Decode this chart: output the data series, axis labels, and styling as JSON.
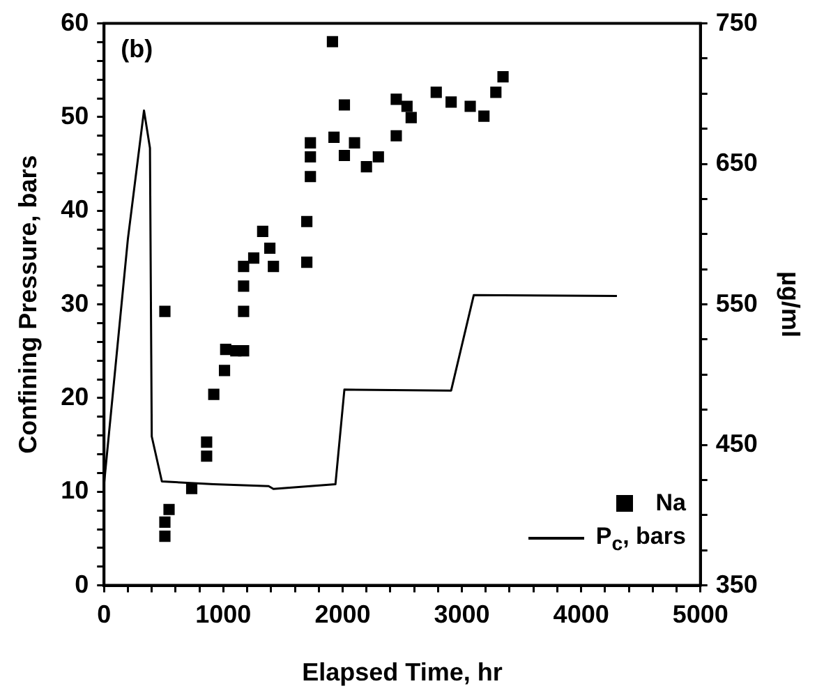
{
  "chart_data": {
    "type": "scatter",
    "xlabel": "Elapsed Time, hr",
    "ylabel": "Confining Pressure, bars",
    "y2label": "µg/ml",
    "annotations": [
      "(b)"
    ],
    "xlim": [
      0,
      5000
    ],
    "xticks": [
      0,
      {
        "value": 200,
        "label": null
      },
      {
        "value": 400,
        "label": null
      },
      {
        "value": 600,
        "label": null
      },
      {
        "value": 800,
        "label": null
      },
      1000,
      {
        "value": 1200,
        "label": null
      },
      {
        "value": 1400,
        "label": null
      },
      {
        "value": 1600,
        "label": null
      },
      {
        "value": 1800,
        "label": null
      },
      2000,
      {
        "value": 2200,
        "label": null
      },
      {
        "value": 2400,
        "label": null
      },
      {
        "value": 2600,
        "label": null
      },
      {
        "value": 2800,
        "label": null
      },
      3000,
      {
        "value": 3200,
        "label": null
      },
      {
        "value": 3400,
        "label": null
      },
      {
        "value": 3600,
        "label": null
      },
      {
        "value": 3800,
        "label": null
      },
      4000,
      {
        "value": 4200,
        "label": null
      },
      {
        "value": 4400,
        "label": null
      },
      {
        "value": 4600,
        "label": null
      },
      {
        "value": 4800,
        "label": null
      },
      5000
    ],
    "ylim": [
      0,
      60
    ],
    "yticks": [
      0,
      {
        "value": 2,
        "label": null
      },
      {
        "value": 4,
        "label": null
      },
      {
        "value": 6,
        "label": null
      },
      {
        "value": 8,
        "label": null
      },
      10,
      {
        "value": 12,
        "label": null
      },
      {
        "value": 14,
        "label": null
      },
      {
        "value": 16,
        "label": null
      },
      {
        "value": 18,
        "label": null
      },
      20,
      {
        "value": 22,
        "label": null
      },
      {
        "value": 24,
        "label": null
      },
      {
        "value": 26,
        "label": null
      },
      {
        "value": 28,
        "label": null
      },
      30,
      {
        "value": 32,
        "label": null
      },
      {
        "value": 34,
        "label": null
      },
      {
        "value": 36,
        "label": null
      },
      {
        "value": 38,
        "label": null
      },
      40,
      {
        "value": 42,
        "label": null
      },
      {
        "value": 44,
        "label": null
      },
      {
        "value": 46,
        "label": null
      },
      {
        "value": 48,
        "label": null
      },
      50,
      {
        "value": 52,
        "label": null
      },
      {
        "value": 54,
        "label": null
      },
      {
        "value": 56,
        "label": null
      },
      {
        "value": 58,
        "label": null
      },
      60
    ],
    "y2lim": [
      350,
      750
    ],
    "y2ticks": [
      350,
      {
        "value": 375,
        "label": null
      },
      {
        "value": 400,
        "label": null
      },
      {
        "value": 425,
        "label": null
      },
      450,
      {
        "value": 475,
        "label": null
      },
      {
        "value": 500,
        "label": null
      },
      {
        "value": 525,
        "label": null
      },
      550,
      {
        "value": 575,
        "label": null
      },
      {
        "value": 600,
        "label": null
      },
      {
        "value": 625,
        "label": null
      },
      650,
      {
        "value": 675,
        "label": null
      },
      {
        "value": 700,
        "label": null
      },
      {
        "value": 725,
        "label": null
      },
      750
    ],
    "grid": false,
    "legend": "bottom right",
    "series": [
      {
        "name": "Na",
        "type": "scatter",
        "axis": "y2",
        "marker": "square",
        "color": "#000000",
        "x": [
          510,
          510,
          510,
          545,
          735,
          860,
          860,
          920,
          1010,
          1020,
          1105,
          1170,
          1170,
          1170,
          1170,
          1255,
          1330,
          1390,
          1420,
          1700,
          1700,
          1730,
          1730,
          1730,
          1915,
          1928,
          2015,
          2015,
          2100,
          2200,
          2300,
          2450,
          2450,
          2540,
          2575,
          2785,
          2910,
          3070,
          3185,
          3285,
          3345
        ],
        "values": [
          385,
          395,
          545,
          404,
          419,
          442,
          452,
          486,
          503,
          518,
          517,
          517,
          545,
          563,
          577,
          583,
          602,
          590,
          577,
          580,
          609,
          641,
          655,
          665,
          737,
          669,
          656,
          692,
          665,
          648,
          655,
          670,
          696,
          691,
          683,
          701,
          694,
          691,
          684,
          701,
          712
        ]
      },
      {
        "name": "P$_{c}$, bars",
        "type": "line",
        "marker": "none",
        "line_style": "solid",
        "color": "#000000",
        "x": [
          0,
          200,
          335,
          385,
          400,
          485,
          920,
          1380,
          1420,
          1940,
          2015,
          2910,
          3100,
          4300
        ],
        "values": [
          10.8,
          37,
          50.7,
          46.7,
          15.9,
          11.1,
          10.8,
          10.6,
          10.3,
          10.8,
          20.9,
          20.8,
          31.0,
          30.9
        ]
      }
    ]
  }
}
